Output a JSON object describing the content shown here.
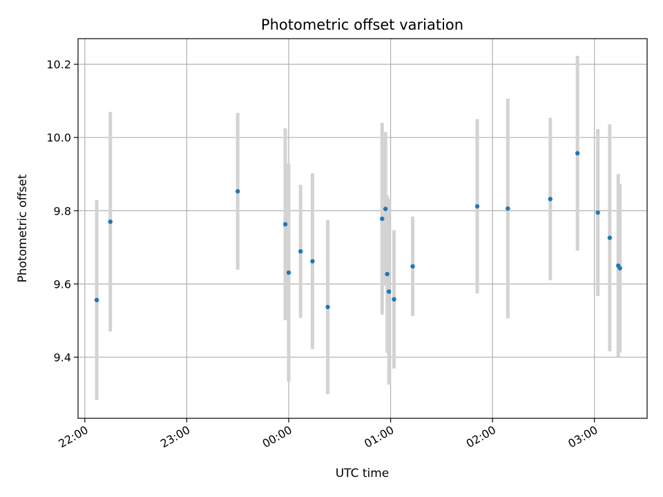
{
  "chart_data": {
    "type": "scatter",
    "title": "Photometric offset variation",
    "xlabel": "UTC time",
    "ylabel": "Photometric offset",
    "x_is_time": true,
    "xlim": [
      "21:56",
      "03:31"
    ],
    "ylim": [
      9.233,
      10.27
    ],
    "xticks": [
      {
        "label": "22:00",
        "value": "22:00"
      },
      {
        "label": "23:00",
        "value": "23:00"
      },
      {
        "label": "00:00",
        "value": "00:00"
      },
      {
        "label": "01:00",
        "value": "01:00"
      },
      {
        "label": "02:00",
        "value": "02:00"
      },
      {
        "label": "03:00",
        "value": "03:00"
      }
    ],
    "yticks": [
      {
        "label": "9.4",
        "value": 9.4
      },
      {
        "label": "9.6",
        "value": 9.6
      },
      {
        "label": "9.8",
        "value": 9.8
      },
      {
        "label": "10.0",
        "value": 10.0
      },
      {
        "label": "10.2",
        "value": 10.2
      }
    ],
    "grid": true,
    "colors": {
      "marker": "#1f77b4",
      "errorbar": "#d3d3d3",
      "grid": "#b0b0b0"
    },
    "points": [
      {
        "x": "22:07",
        "y": 9.556,
        "err": 0.273
      },
      {
        "x": "22:15",
        "y": 9.77,
        "err": 0.3
      },
      {
        "x": "23:30",
        "y": 9.853,
        "err": 0.214
      },
      {
        "x": "23:58",
        "y": 9.763,
        "err": 0.262
      },
      {
        "x": "00:00",
        "y": 9.631,
        "err": 0.298
      },
      {
        "x": "00:07",
        "y": 9.689,
        "err": 0.182
      },
      {
        "x": "00:14",
        "y": 9.662,
        "err": 0.24
      },
      {
        "x": "00:23",
        "y": 9.537,
        "err": 0.238
      },
      {
        "x": "00:55",
        "y": 9.778,
        "err": 0.262
      },
      {
        "x": "00:57",
        "y": 9.805,
        "err": 0.21
      },
      {
        "x": "00:58",
        "y": 9.627,
        "err": 0.215
      },
      {
        "x": "00:59",
        "y": 9.579,
        "err": 0.254
      },
      {
        "x": "01:02",
        "y": 9.558,
        "err": 0.189
      },
      {
        "x": "01:13",
        "y": 9.648,
        "err": 0.136
      },
      {
        "x": "01:51",
        "y": 9.812,
        "err": 0.238
      },
      {
        "x": "02:09",
        "y": 9.806,
        "err": 0.3
      },
      {
        "x": "02:34",
        "y": 9.832,
        "err": 0.222
      },
      {
        "x": "02:50",
        "y": 9.957,
        "err": 0.266
      },
      {
        "x": "03:02",
        "y": 9.795,
        "err": 0.228
      },
      {
        "x": "03:09",
        "y": 9.726,
        "err": 0.31
      },
      {
        "x": "03:14",
        "y": 9.65,
        "err": 0.25
      },
      {
        "x": "03:15",
        "y": 9.643,
        "err": 0.23
      }
    ]
  }
}
